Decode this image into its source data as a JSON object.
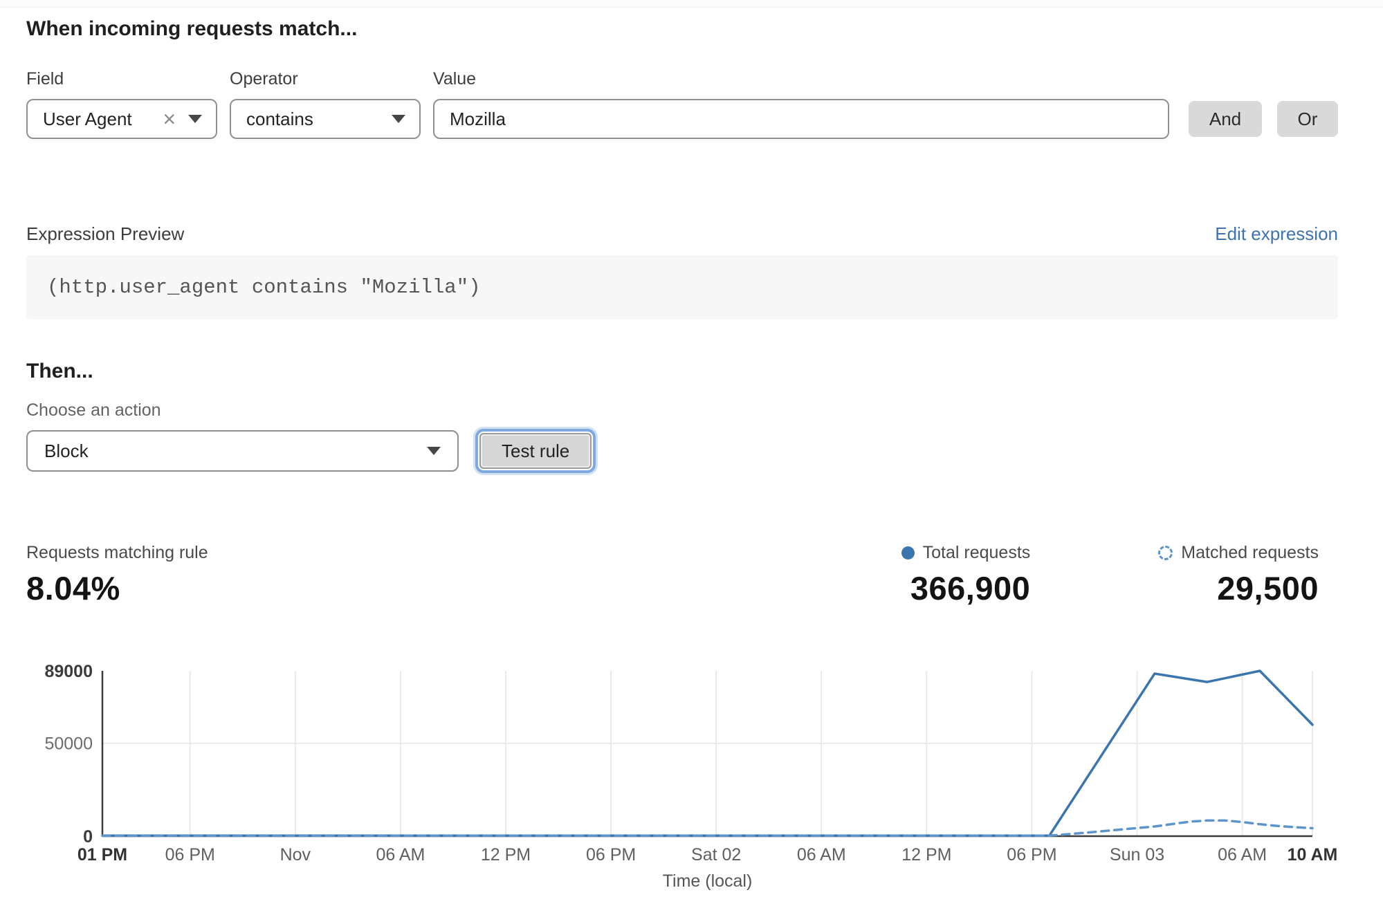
{
  "rule_builder": {
    "heading": "When incoming requests match...",
    "field": {
      "label": "Field",
      "value": "User Agent"
    },
    "operator": {
      "label": "Operator",
      "value": "contains"
    },
    "value": {
      "label": "Value",
      "value": "Mozilla"
    },
    "and_button": "And",
    "or_button": "Or"
  },
  "expression": {
    "label": "Expression Preview",
    "edit_link": "Edit expression",
    "code": "(http.user_agent contains \"Mozilla\")"
  },
  "action_section": {
    "heading": "Then...",
    "choose_label": "Choose an action",
    "action_value": "Block",
    "test_button": "Test rule"
  },
  "stats": {
    "matching_rule": {
      "label": "Requests matching rule",
      "value": "8.04%"
    },
    "total": {
      "label": "Total requests",
      "value": "366,900"
    },
    "matched": {
      "label": "Matched requests",
      "value": "29,500"
    }
  },
  "colors": {
    "accent_blue": "#3a76ad",
    "dashed_blue": "#5d95ca",
    "link_blue": "#3e73b3",
    "focus_ring_blue": "#7fa9e0",
    "button_gray": "#d9d9d9"
  },
  "chart_data": {
    "type": "line",
    "title": "",
    "xlabel": "Time (local)",
    "ylabel": "",
    "x_unit": "hours from start (01 PM day 1 to 10 AM Sun 03)",
    "ylim": [
      0,
      89000
    ],
    "grid": "vertical line at each x tick, horizontal line at 50000",
    "legend_position": "top-right (shown as stats legend above chart)",
    "yticks": [
      {
        "value": 0,
        "label": "0",
        "bold": true
      },
      {
        "value": 50000,
        "label": "50000",
        "bold": false
      },
      {
        "value": 89000,
        "label": "89000",
        "bold": true
      }
    ],
    "xticks": [
      {
        "h": 0,
        "label": "01 PM",
        "bold": true
      },
      {
        "h": 5,
        "label": "06 PM",
        "bold": false
      },
      {
        "h": 11,
        "label": "Nov",
        "bold": false
      },
      {
        "h": 17,
        "label": "06 AM",
        "bold": false
      },
      {
        "h": 23,
        "label": "12 PM",
        "bold": false
      },
      {
        "h": 29,
        "label": "06 PM",
        "bold": false
      },
      {
        "h": 35,
        "label": "Sat 02",
        "bold": false
      },
      {
        "h": 41,
        "label": "06 AM",
        "bold": false
      },
      {
        "h": 47,
        "label": "12 PM",
        "bold": false
      },
      {
        "h": 53,
        "label": "06 PM",
        "bold": false
      },
      {
        "h": 59,
        "label": "Sun 03",
        "bold": false
      },
      {
        "h": 65,
        "label": "06 AM",
        "bold": false
      },
      {
        "h": 69,
        "label": "10 AM",
        "bold": true
      }
    ],
    "series": [
      {
        "name": "Total requests",
        "style": "solid",
        "color": "#3a76ad",
        "points": [
          [
            0,
            300
          ],
          [
            54,
            300
          ],
          [
            60,
            87500
          ],
          [
            63,
            83000
          ],
          [
            66,
            89000
          ],
          [
            69,
            60000
          ]
        ]
      },
      {
        "name": "Matched requests",
        "style": "dashed",
        "color": "#5d95ca",
        "points": [
          [
            0,
            200
          ],
          [
            54,
            250
          ],
          [
            56,
            1800
          ],
          [
            58,
            3500
          ],
          [
            60,
            5200
          ],
          [
            62,
            7800
          ],
          [
            63,
            8400
          ],
          [
            64,
            8400
          ],
          [
            65,
            7600
          ],
          [
            66,
            6400
          ],
          [
            67,
            5500
          ],
          [
            68,
            4800
          ],
          [
            69,
            4300
          ]
        ]
      }
    ]
  }
}
